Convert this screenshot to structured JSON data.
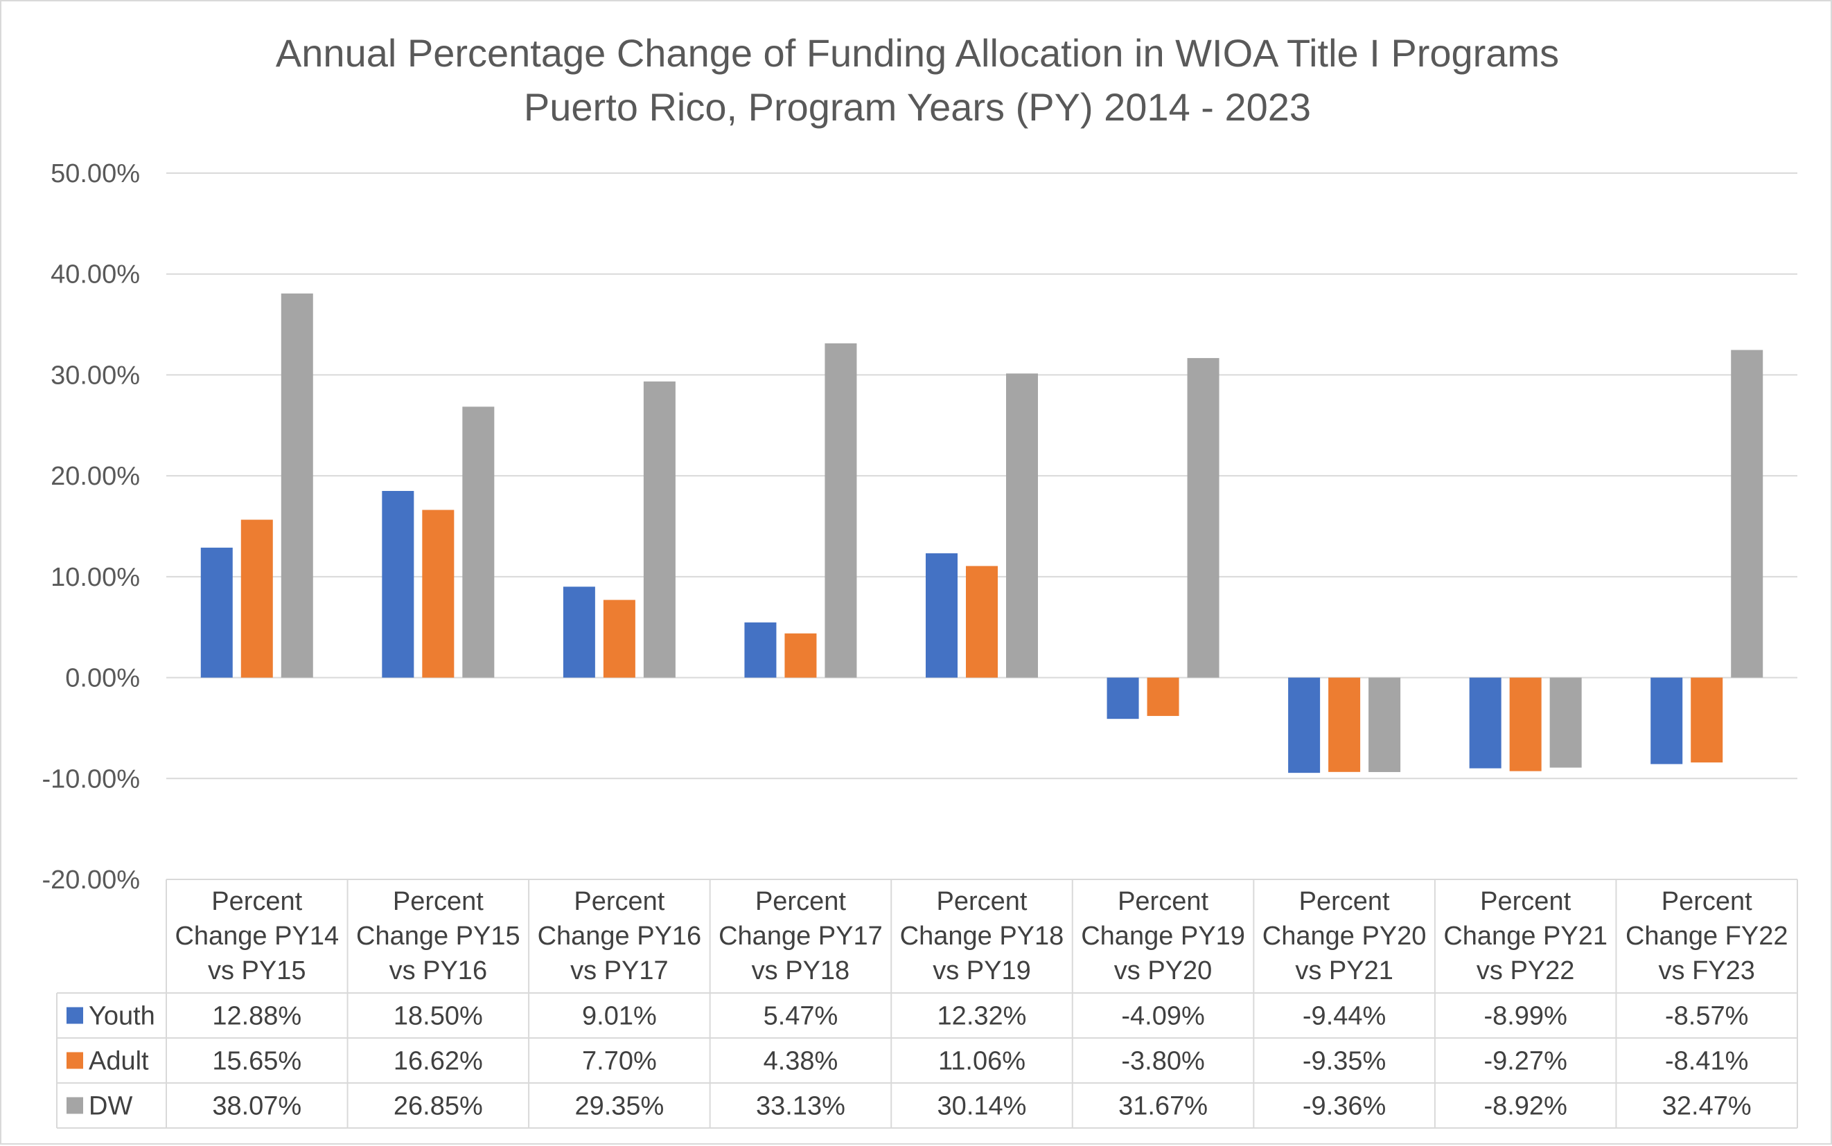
{
  "chart_data": {
    "type": "bar",
    "title": "Annual Percentage Change of Funding Allocation in WIOA Title I Programs",
    "subtitle": "Puerto Rico, Program Years (PY) 2014 - 2023",
    "categories": [
      [
        "Percent",
        "Change PY14",
        "vs PY15"
      ],
      [
        "Percent",
        "Change PY15",
        "vs PY16"
      ],
      [
        "Percent",
        "Change PY16",
        "vs PY17"
      ],
      [
        "Percent",
        "Change PY17",
        "vs PY18"
      ],
      [
        "Percent",
        "Change PY18",
        "vs PY19"
      ],
      [
        "Percent",
        "Change PY19",
        "vs PY20"
      ],
      [
        "Percent",
        "Change PY20",
        "vs PY21"
      ],
      [
        "Percent",
        "Change PY21",
        "vs PY22"
      ],
      [
        "Percent",
        "Change FY22",
        "vs FY23"
      ]
    ],
    "series": [
      {
        "name": "Youth",
        "color": "#4472c4",
        "values": [
          12.88,
          18.5,
          9.01,
          5.47,
          12.32,
          -4.09,
          -9.44,
          -8.99,
          -8.57
        ],
        "labels": [
          "12.88%",
          "18.50%",
          "9.01%",
          "5.47%",
          "12.32%",
          "-4.09%",
          "-9.44%",
          "-8.99%",
          "-8.57%"
        ]
      },
      {
        "name": "Adult",
        "color": "#ed7d31",
        "values": [
          15.65,
          16.62,
          7.7,
          4.38,
          11.06,
          -3.8,
          -9.35,
          -9.27,
          -8.41
        ],
        "labels": [
          "15.65%",
          "16.62%",
          "7.70%",
          "4.38%",
          "11.06%",
          "-3.80%",
          "-9.35%",
          "-9.27%",
          "-8.41%"
        ]
      },
      {
        "name": "DW",
        "color": "#a5a5a5",
        "values": [
          38.07,
          26.85,
          29.35,
          33.13,
          30.14,
          31.67,
          -9.36,
          -8.92,
          32.47
        ],
        "labels": [
          "38.07%",
          "26.85%",
          "29.35%",
          "33.13%",
          "30.14%",
          "31.67%",
          "-9.36%",
          "-8.92%",
          "32.47%"
        ]
      }
    ],
    "ylim": [
      -20,
      50
    ],
    "yticks": [
      50,
      40,
      30,
      20,
      10,
      0,
      -10,
      -20
    ],
    "ytick_labels": [
      "50.00%",
      "40.00%",
      "30.00%",
      "20.00%",
      "10.00%",
      "0.00%",
      "-10.00%",
      "-20.00%"
    ],
    "grid": true,
    "legend": "data-table"
  }
}
